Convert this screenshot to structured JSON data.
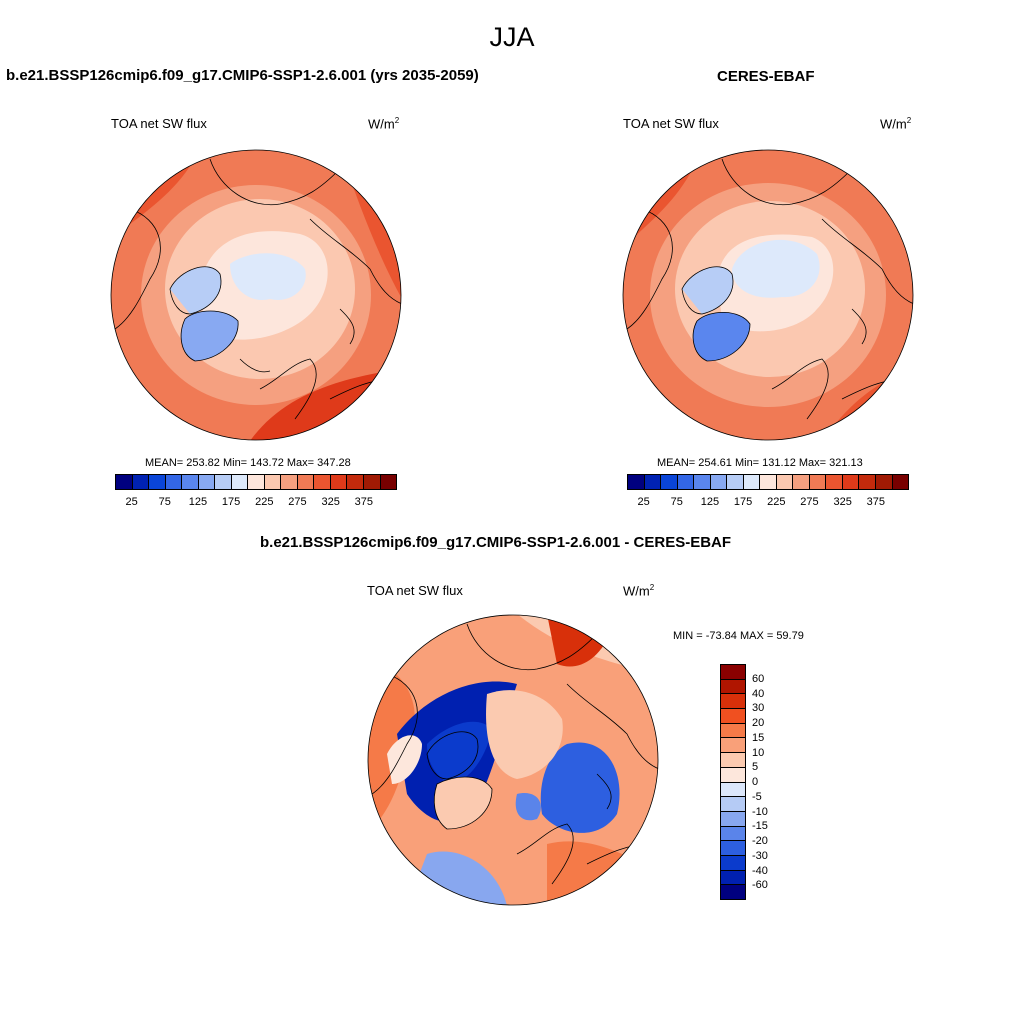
{
  "figure_title": "JJA",
  "colors": {
    "abs_scale": [
      "#00007f",
      "#0022b3",
      "#0a45d8",
      "#3366e6",
      "#5a86ee",
      "#88a9f2",
      "#b7cdf6",
      "#dde9fb",
      "#fde6dc",
      "#fbc8b0",
      "#f5a080",
      "#f07a55",
      "#ea5530",
      "#df3a1a",
      "#c42a0c",
      "#a01a04",
      "#780000"
    ],
    "diff_scale": [
      "#8a0000",
      "#b01500",
      "#d8300a",
      "#f05020",
      "#f57a48",
      "#f9a079",
      "#fbcab0",
      "#fde7dc",
      "#dce7fb",
      "#b5cbf5",
      "#88a7ef",
      "#5a84ea",
      "#2d5fe0",
      "#0b3bcc",
      "#0020b0",
      "#00007f"
    ]
  },
  "panels": {
    "model": {
      "case_title": "b.e21.BSSP126cmip6.f09_g17.CMIP6-SSP1-2.6.001 (yrs 2035-2059)",
      "variable": "TOA net SW flux",
      "units_base": "W/m",
      "units_exp": "2",
      "stats": "MEAN= 253.82  Min= 143.72  Max= 347.28"
    },
    "obs": {
      "case_title": "CERES-EBAF",
      "variable": "TOA net SW flux",
      "units_base": "W/m",
      "units_exp": "2",
      "stats": "MEAN= 254.61  Min= 131.12  Max= 321.13"
    },
    "diff": {
      "case_title": "b.e21.BSSP126cmip6.f09_g17.CMIP6-SSP1-2.6.001 - CERES-EBAF",
      "variable": "TOA net SW flux",
      "units_base": "W/m",
      "units_exp": "2",
      "stats": "MIN = -73.84 MAX =  59.79"
    }
  },
  "abs_colorbar_ticks": [
    "25",
    "75",
    "125",
    "175",
    "225",
    "275",
    "325",
    "375"
  ],
  "diff_colorbar_ticks": [
    "60",
    "40",
    "30",
    "20",
    "15",
    "10",
    "5",
    "0",
    "-5",
    "-10",
    "-15",
    "-20",
    "-30",
    "-40",
    "-60"
  ]
}
